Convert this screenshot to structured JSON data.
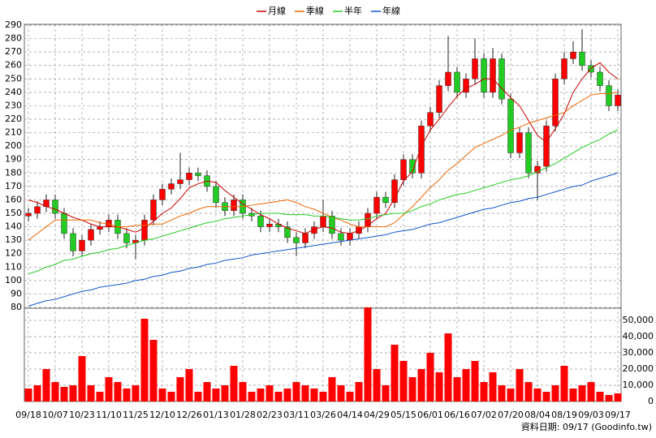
{
  "chart_data": [
    {
      "type": "candlestick",
      "categories": [
        "09/18",
        null,
        null,
        "10/07",
        null,
        null,
        "10/23",
        null,
        null,
        "11/10",
        null,
        null,
        "11/25",
        null,
        null,
        "12/10",
        null,
        null,
        "12/26",
        null,
        null,
        "01/13",
        null,
        null,
        "01/28",
        null,
        null,
        "02/23",
        null,
        null,
        "03/11",
        null,
        null,
        "03/26",
        null,
        null,
        "04/14",
        null,
        null,
        "04/29",
        null,
        null,
        "05/15",
        null,
        null,
        "06/01",
        null,
        null,
        "06/16",
        null,
        null,
        "07/02",
        null,
        null,
        "07/20",
        null,
        null,
        "08/04",
        null,
        null,
        "08/19",
        null,
        null,
        "09/03",
        null,
        null,
        "09/17"
      ],
      "open": [
        148,
        150,
        155,
        160,
        150,
        135,
        122,
        130,
        138,
        140,
        145,
        135,
        128,
        130,
        145,
        160,
        168,
        172,
        175,
        180,
        178,
        170,
        158,
        152,
        160,
        150,
        148,
        140,
        142,
        140,
        132,
        128,
        135,
        140,
        148,
        135,
        130,
        135,
        140,
        150,
        162,
        158,
        175,
        190,
        180,
        215,
        225,
        245,
        255,
        240,
        250,
        265,
        240,
        265,
        235,
        195,
        210,
        180,
        185,
        215,
        250,
        265,
        270,
        260,
        255,
        245,
        230
      ],
      "high": [
        154,
        159,
        164,
        164,
        154,
        139,
        134,
        142,
        144,
        149,
        149,
        139,
        134,
        149,
        164,
        172,
        176,
        195,
        184,
        184,
        182,
        174,
        162,
        164,
        164,
        154,
        152,
        146,
        146,
        144,
        136,
        139,
        144,
        160,
        152,
        139,
        139,
        144,
        154,
        166,
        166,
        179,
        194,
        194,
        219,
        229,
        249,
        282,
        259,
        254,
        280,
        269,
        273,
        269,
        239,
        214,
        214,
        189,
        219,
        254,
        270,
        278,
        287,
        264,
        259,
        249,
        242
      ],
      "low": [
        144,
        146,
        151,
        146,
        131,
        118,
        118,
        126,
        134,
        136,
        131,
        124,
        116,
        126,
        141,
        156,
        164,
        168,
        171,
        174,
        166,
        154,
        148,
        148,
        146,
        144,
        136,
        136,
        136,
        128,
        118,
        124,
        131,
        136,
        131,
        126,
        126,
        131,
        136,
        146,
        154,
        154,
        171,
        176,
        176,
        211,
        221,
        241,
        236,
        236,
        246,
        236,
        236,
        231,
        191,
        191,
        176,
        160,
        181,
        211,
        246,
        261,
        256,
        251,
        241,
        226,
        226
      ],
      "close": [
        150,
        155,
        160,
        150,
        135,
        122,
        130,
        138,
        140,
        145,
        135,
        128,
        130,
        145,
        160,
        168,
        172,
        175,
        180,
        178,
        170,
        158,
        152,
        160,
        150,
        148,
        140,
        142,
        140,
        132,
        128,
        135,
        140,
        148,
        135,
        130,
        135,
        140,
        150,
        162,
        158,
        175,
        190,
        180,
        215,
        225,
        245,
        255,
        240,
        250,
        265,
        240,
        265,
        235,
        195,
        210,
        180,
        185,
        215,
        250,
        265,
        270,
        260,
        255,
        245,
        230,
        238
      ],
      "up_color": "#ff0000",
      "down_color": "#22cc22",
      "series": [
        {
          "name": "月線",
          "color": "#cc0000",
          "values": [
            160,
            158,
            155,
            153,
            150,
            147,
            145,
            142,
            140,
            140,
            140,
            138,
            136,
            139,
            144,
            150,
            154,
            161,
            169,
            172,
            174,
            173,
            167,
            162,
            157,
            153,
            149,
            146,
            142,
            139,
            137,
            135,
            138,
            140,
            139,
            136,
            135,
            137,
            141,
            146,
            150,
            161,
            174,
            181,
            200,
            212,
            220,
            229,
            237,
            243,
            246,
            250,
            250,
            243,
            236,
            230,
            219,
            208,
            203,
            213,
            224,
            240,
            250,
            258,
            262,
            255,
            250
          ]
        },
        {
          "name": "季線",
          "color": "#ee6600",
          "values": [
            130,
            135,
            140,
            145,
            145,
            145,
            145,
            145,
            143,
            142,
            140,
            140,
            141,
            141,
            142,
            142,
            145,
            148,
            150,
            153,
            155,
            155,
            155,
            155,
            155,
            156,
            157,
            158,
            159,
            160,
            158,
            155,
            153,
            150,
            147,
            145,
            142,
            140,
            140,
            140,
            140,
            143,
            149,
            155,
            162,
            169,
            175,
            182,
            187,
            193,
            199,
            202,
            205,
            208,
            212,
            214,
            217,
            219,
            221,
            223,
            225,
            230,
            234,
            238,
            239,
            239,
            240
          ]
        },
        {
          "name": "半年",
          "color": "#22cc22",
          "values": [
            105,
            107,
            110,
            112,
            115,
            116,
            118,
            120,
            121,
            123,
            124,
            126,
            128,
            130,
            131,
            133,
            135,
            137,
            139,
            141,
            143,
            144,
            146,
            147,
            148,
            149,
            150,
            150,
            150,
            149,
            149,
            149,
            148,
            148,
            147,
            146,
            145,
            145,
            146,
            148,
            149,
            150,
            150,
            152,
            155,
            157,
            160,
            162,
            164,
            165,
            167,
            169,
            171,
            173,
            175,
            176,
            178,
            181,
            184,
            187,
            191,
            195,
            199,
            202,
            205,
            209,
            212
          ]
        },
        {
          "name": "年線",
          "color": "#1155cc",
          "values": [
            81,
            83,
            85,
            86,
            88,
            90,
            92,
            93,
            95,
            96,
            97,
            98,
            100,
            101,
            103,
            104,
            106,
            107,
            109,
            110,
            112,
            113,
            115,
            116,
            117,
            119,
            120,
            121,
            122,
            123,
            124,
            125,
            126,
            127,
            128,
            129,
            130,
            131,
            132,
            133,
            134,
            136,
            137,
            138,
            140,
            142,
            143,
            145,
            147,
            149,
            151,
            153,
            154,
            156,
            158,
            159,
            161,
            162,
            164,
            166,
            168,
            170,
            171,
            174,
            176,
            178,
            180
          ]
        }
      ],
      "ylim": [
        80,
        290
      ],
      "yticks": [
        80,
        90,
        100,
        110,
        120,
        130,
        140,
        150,
        160,
        170,
        180,
        190,
        200,
        210,
        220,
        230,
        240,
        250,
        260,
        270,
        280,
        290
      ],
      "grid": true,
      "annotation": "資料日期: 09/17  (Goodinfo.tw)"
    },
    {
      "type": "bar",
      "color": "#ff0000",
      "values": [
        8000,
        10000,
        20000,
        12000,
        9000,
        10000,
        28000,
        10000,
        6000,
        15000,
        12000,
        8000,
        10000,
        51000,
        38000,
        8000,
        6000,
        15000,
        20000,
        6000,
        12000,
        8000,
        10000,
        22000,
        12000,
        6000,
        8000,
        10000,
        6000,
        8000,
        12000,
        10000,
        8000,
        6000,
        15000,
        10000,
        6000,
        12000,
        58000,
        20000,
        10000,
        35000,
        25000,
        15000,
        20000,
        30000,
        18000,
        42000,
        15000,
        20000,
        25000,
        12000,
        18000,
        10000,
        8000,
        20000,
        12000,
        8000,
        6000,
        10000,
        22000,
        8000,
        10000,
        12000,
        6000,
        4000,
        5000
      ],
      "ylim": [
        0,
        57500
      ],
      "yticks": [
        0,
        {
          "value": 10000,
          "label": "10,000"
        },
        {
          "value": 20000,
          "label": "20,000"
        },
        {
          "value": 30000,
          "label": "30,000"
        },
        {
          "value": 40000,
          "label": "40,000"
        },
        {
          "value": 50000,
          "label": "50,000"
        }
      ],
      "grid": true
    }
  ]
}
